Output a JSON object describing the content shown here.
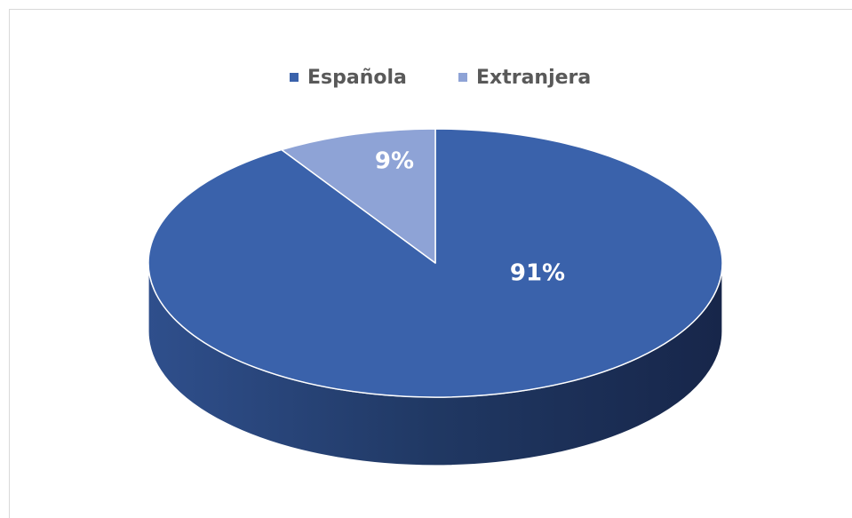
{
  "chart_data": {
    "type": "pie",
    "categories": [
      "Española",
      "Extranjera"
    ],
    "values": [
      91,
      9
    ],
    "data_labels": [
      "91%",
      "9%"
    ],
    "legend_position": "top",
    "three_d": true,
    "colors": [
      "#3a62ab",
      "#8ea3d6"
    ],
    "side_colors": [
      "#1d3157",
      "#5e72a8"
    ]
  }
}
